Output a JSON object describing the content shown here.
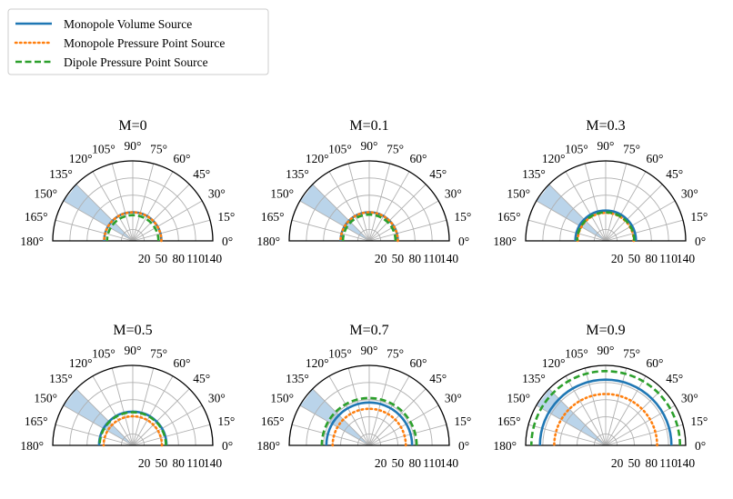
{
  "legend": {
    "location": "upper-left",
    "entries": [
      {
        "label": "Monopole Volume Source",
        "style": "solid",
        "color": "#1f77b4"
      },
      {
        "label": "Monopole Pressure Point Source",
        "style": "dotted",
        "color": "#ff7f0e"
      },
      {
        "label": "Dipole Pressure Point Source",
        "style": "dashed",
        "color": "#2ca02c"
      }
    ]
  },
  "colors": {
    "grid": "#b0b0b0",
    "frame": "#000000",
    "shaded_sector": "#aecde6"
  },
  "chart_data": {
    "type": "polar",
    "layout": "2x3 grid of half-polar (0° to 180°) panels",
    "angle_ticks_deg": [
      0,
      15,
      30,
      45,
      60,
      75,
      90,
      105,
      120,
      135,
      150,
      165,
      180
    ],
    "angle_tick_labels": [
      "0°",
      "15°",
      "30°",
      "45°",
      "60°",
      "75°",
      "90°",
      "105°",
      "120°",
      "135°",
      "150°",
      "165°",
      "180°"
    ],
    "radial_ticks": [
      20,
      50,
      80,
      110,
      140
    ],
    "radial_tick_labels": [
      "20",
      "50",
      "80",
      "110",
      "140"
    ],
    "rlim": [
      0,
      140
    ],
    "grid": true,
    "shaded_sector_deg": [
      135,
      150
    ],
    "panels": [
      {
        "title": "M=0",
        "series": [
          {
            "name": "Monopole Volume Source",
            "radius": 50
          },
          {
            "name": "Monopole Pressure Point Source",
            "radius": 50
          },
          {
            "name": "Dipole Pressure Point Source",
            "radius": 45
          }
        ]
      },
      {
        "title": "M=0.1",
        "series": [
          {
            "name": "Monopole Volume Source",
            "radius": 50
          },
          {
            "name": "Monopole Pressure Point Source",
            "radius": 50
          },
          {
            "name": "Dipole Pressure Point Source",
            "radius": 46
          }
        ]
      },
      {
        "title": "M=0.3",
        "series": [
          {
            "name": "Monopole Volume Source",
            "radius": 53
          },
          {
            "name": "Monopole Pressure Point Source",
            "radius": 49
          },
          {
            "name": "Dipole Pressure Point Source",
            "radius": 50
          }
        ]
      },
      {
        "title": "M=0.5",
        "series": [
          {
            "name": "Monopole Volume Source",
            "radius": 59
          },
          {
            "name": "Monopole Pressure Point Source",
            "radius": 51
          },
          {
            "name": "Dipole Pressure Point Source",
            "radius": 58
          }
        ]
      },
      {
        "title": "M=0.7",
        "series": [
          {
            "name": "Monopole Volume Source",
            "radius": 75
          },
          {
            "name": "Monopole Pressure Point Source",
            "radius": 64
          },
          {
            "name": "Dipole Pressure Point Source",
            "radius": 83
          }
        ]
      },
      {
        "title": "M=0.9",
        "series": [
          {
            "name": "Monopole Volume Source",
            "radius": 115
          },
          {
            "name": "Monopole Pressure Point Source",
            "radius": 90
          },
          {
            "name": "Dipole Pressure Point Source",
            "radius": 130
          }
        ]
      }
    ]
  }
}
